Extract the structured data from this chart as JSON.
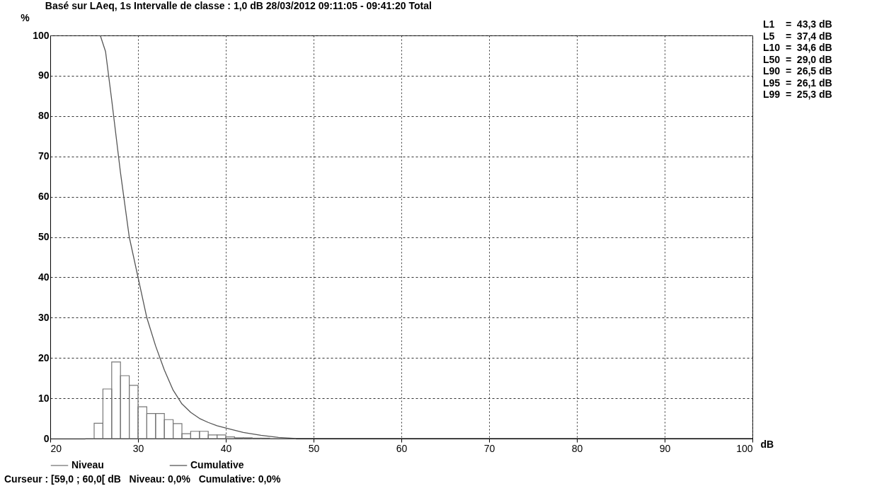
{
  "chart_data": {
    "type": "histogram",
    "title": "Basé sur LAeq, 1s Intervalle de classe : 1,0 dB  28/03/2012 09:11:05 - 09:41:20  Total",
    "xlabel": "dB",
    "ylabel": "%",
    "bins": [
      24,
      25,
      26,
      27,
      28,
      29,
      30,
      31,
      32,
      33,
      34,
      35,
      36,
      37,
      38,
      39,
      40,
      41,
      42,
      43,
      44,
      45,
      46,
      47,
      48
    ],
    "series": [
      {
        "name": "Niveau",
        "color": "#777777",
        "values": [
          0,
          3.8,
          12.3,
          19,
          15.6,
          13.2,
          7.9,
          6.2,
          6.2,
          4.7,
          3.7,
          1.2,
          1.8,
          1.8,
          0.9,
          0.9,
          0.4,
          0.2,
          0.2,
          0.1,
          0.1,
          0,
          0,
          0
        ]
      },
      {
        "name": "Cumulative",
        "type": "line",
        "color": "#555555",
        "x": [
          25.7,
          26.3,
          27,
          28,
          29,
          30,
          31,
          32,
          33,
          34,
          35,
          36,
          37,
          38,
          39,
          40,
          42,
          44,
          46,
          48,
          100
        ],
        "values": [
          100,
          96,
          84,
          66,
          50,
          40,
          30,
          23,
          17,
          12,
          8.6,
          6.5,
          5,
          4,
          3.2,
          2.6,
          1.5,
          0.8,
          0.3,
          0,
          0
        ]
      }
    ],
    "xlim": [
      20,
      100
    ],
    "xticks": [
      20,
      30,
      40,
      50,
      60,
      70,
      80,
      90,
      100
    ],
    "ylim": [
      0,
      100
    ],
    "yticks": [
      0,
      10,
      20,
      30,
      40,
      50,
      60,
      70,
      80,
      90,
      100
    ],
    "grid": true,
    "legend": "bottom",
    "annotations": [
      "L1    =  43,3 dB",
      "L5    =  37,4 dB",
      "L10  =  34,6 dB",
      "L50  =  29,0 dB",
      "L90  =  26,5 dB",
      "L95  =  26,1 dB",
      "L99  =  25,3 dB",
      "Curseur : [59,0 ; 60,0[ dB   Niveau: 0,0%   Cumulative: 0,0%"
    ]
  }
}
